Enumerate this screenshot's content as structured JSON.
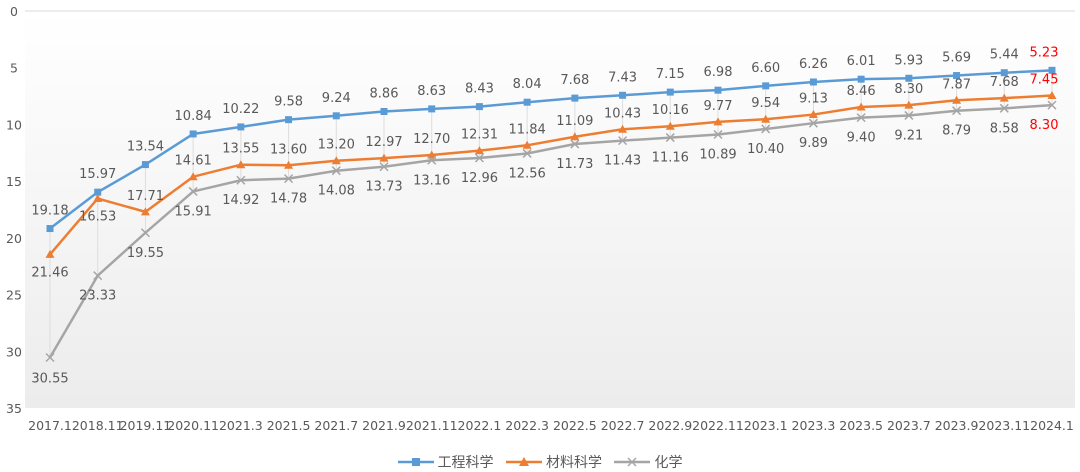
{
  "chart_data": {
    "type": "line",
    "title": "",
    "xlabel": "",
    "ylabel": "",
    "ylim": [
      0,
      35
    ],
    "y_inverted": true,
    "yticks": [
      0,
      5,
      10,
      15,
      20,
      25,
      30,
      35
    ],
    "grid": true,
    "legend_position": "bottom",
    "categories": [
      "2017.1",
      "2018.11",
      "2019.11",
      "2020.11",
      "2021.3",
      "2021.5",
      "2021.7",
      "2021.9",
      "2021.11",
      "2022.1",
      "2022.3",
      "2022.5",
      "2022.7",
      "2022.9",
      "2022.11",
      "2023.1",
      "2023.3",
      "2023.5",
      "2023.7",
      "2023.9",
      "2023.11",
      "2024.1"
    ],
    "series": [
      {
        "name": "工程科学",
        "color": "#5B9BD5",
        "marker": "square",
        "values": [
          19.18,
          15.97,
          13.54,
          10.84,
          10.22,
          9.58,
          9.24,
          8.86,
          8.63,
          8.43,
          8.04,
          7.68,
          7.43,
          7.15,
          6.98,
          6.6,
          6.26,
          6.01,
          5.93,
          5.69,
          5.44,
          5.23
        ],
        "labels": [
          "19.18",
          "15.97",
          "13.54",
          "10.84",
          "10.22",
          "9.58",
          "9.24",
          "8.86",
          "8.63",
          "8.43",
          "8.04",
          "7.68",
          "7.43",
          "7.15",
          "6.98",
          "6.60",
          "6.26",
          "6.01",
          "5.93",
          "5.69",
          "5.44",
          "5.23"
        ]
      },
      {
        "name": "材料科学",
        "color": "#ED7D31",
        "marker": "triangle",
        "values": [
          21.46,
          16.53,
          17.71,
          14.61,
          13.55,
          13.6,
          13.2,
          12.97,
          12.7,
          12.31,
          11.84,
          11.09,
          10.43,
          10.16,
          9.77,
          9.54,
          9.13,
          8.46,
          8.3,
          7.87,
          7.68,
          7.45
        ],
        "labels": [
          "21.46",
          "16.53",
          "17.71",
          "14.61",
          "13.55",
          "13.60",
          "13.20",
          "12.97",
          "12.70",
          "12.31",
          "11.84",
          "11.09",
          "10.43",
          "10.16",
          "9.77",
          "9.54",
          "9.13",
          "8.46",
          "8.30",
          "7.87",
          "7.68",
          "7.45"
        ]
      },
      {
        "name": "化学",
        "color": "#A5A5A5",
        "marker": "x",
        "values": [
          30.55,
          23.33,
          19.55,
          15.91,
          14.92,
          14.78,
          14.08,
          13.73,
          13.16,
          12.96,
          12.56,
          11.73,
          11.43,
          11.16,
          10.89,
          10.4,
          9.89,
          9.4,
          9.21,
          8.79,
          8.58,
          8.3
        ],
        "labels": [
          "30.55",
          "23.33",
          "19.55",
          "15.91",
          "14.92",
          "14.78",
          "14.08",
          "13.73",
          "13.16",
          "12.96",
          "12.56",
          "11.73",
          "11.43",
          "11.16",
          "10.89",
          "10.40",
          "9.89",
          "9.40",
          "9.21",
          "8.79",
          "8.58",
          "8.30"
        ]
      }
    ],
    "highlight_color": "#FF0000"
  }
}
